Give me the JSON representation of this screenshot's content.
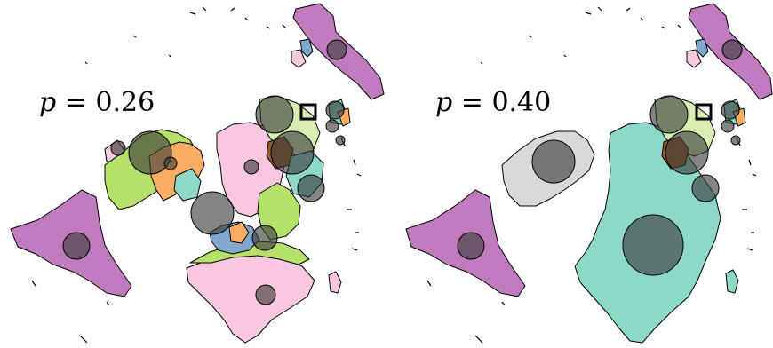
{
  "panels": [
    {
      "var": "p",
      "eq": " = ",
      "value": "0.26"
    },
    {
      "var": "p",
      "eq": " = ",
      "value": "0.40"
    }
  ],
  "colors": {
    "purple": "#c07bbe",
    "pink": "#f8c8e0",
    "orange": "#fbae63",
    "lightgreen": "#b5e06a",
    "teal": "#8ed8c8",
    "gray": "#d9d9d9",
    "blue": "#80a8cc",
    "brown": "#9b5a2a",
    "paleyellowgreen": "#d8edb0",
    "bubble": "#3a3a3a"
  }
}
